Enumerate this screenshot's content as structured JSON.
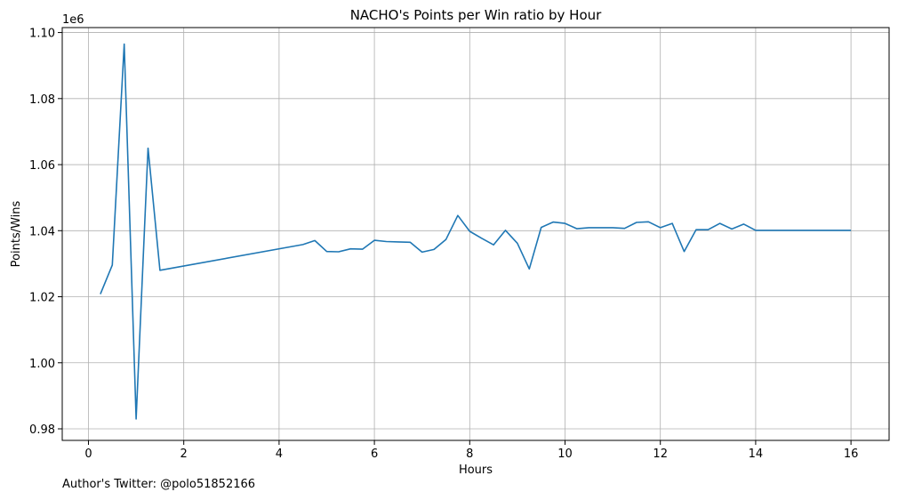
{
  "chart_data": {
    "type": "line",
    "title": "NACHO's Points per Win ratio by Hour",
    "xlabel": "Hours",
    "ylabel": "Points/Wins",
    "offset_text": "1e6",
    "xlim": [
      -0.55,
      16.8
    ],
    "ylim": [
      0.9765,
      1.1015
    ],
    "xticks": [
      0,
      2,
      4,
      6,
      8,
      10,
      12,
      14,
      16
    ],
    "yticks": [
      0.98,
      1.0,
      1.02,
      1.04,
      1.06,
      1.08,
      1.1
    ],
    "ytick_labels": [
      "0.98",
      "1.00",
      "1.02",
      "1.04",
      "1.06",
      "1.08",
      "1.10"
    ],
    "grid": true,
    "series": [
      {
        "color": "#1f77b4",
        "x": [
          0.25,
          0.5,
          0.75,
          1.0,
          1.25,
          1.5,
          4.5,
          4.75,
          5.0,
          5.25,
          5.5,
          5.75,
          6.0,
          6.25,
          6.5,
          6.75,
          7.0,
          7.25,
          7.5,
          7.75,
          8.0,
          8.25,
          8.5,
          8.75,
          9.0,
          9.25,
          9.5,
          9.75,
          10.0,
          10.25,
          10.5,
          10.75,
          11.0,
          11.25,
          11.5,
          11.75,
          12.0,
          12.25,
          12.5,
          12.75,
          13.0,
          13.25,
          13.5,
          13.75,
          14.0,
          14.25,
          14.5,
          14.75,
          15.0,
          15.25,
          15.5,
          15.75,
          16.0
        ],
        "y": [
          1.0208,
          1.0296,
          1.0965,
          0.983,
          1.065,
          1.028,
          1.0358,
          1.037,
          1.0337,
          1.0336,
          1.0345,
          1.0344,
          1.0371,
          1.0367,
          1.0366,
          1.0365,
          1.0335,
          1.0343,
          1.0373,
          1.0446,
          1.0398,
          1.0377,
          1.0357,
          1.0401,
          1.0362,
          1.0284,
          1.041,
          1.0426,
          1.0422,
          1.0406,
          1.0409,
          1.0409,
          1.0409,
          1.0407,
          1.0425,
          1.0427,
          1.0409,
          1.0422,
          1.0337,
          1.0403,
          1.0403,
          1.0422,
          1.0405,
          1.042,
          1.0401,
          1.0401,
          1.0401,
          1.0401,
          1.0401,
          1.0401,
          1.0401,
          1.0401,
          1.0401
        ]
      }
    ]
  },
  "footer": {
    "author_text": "Author's Twitter: @polo51852166"
  }
}
